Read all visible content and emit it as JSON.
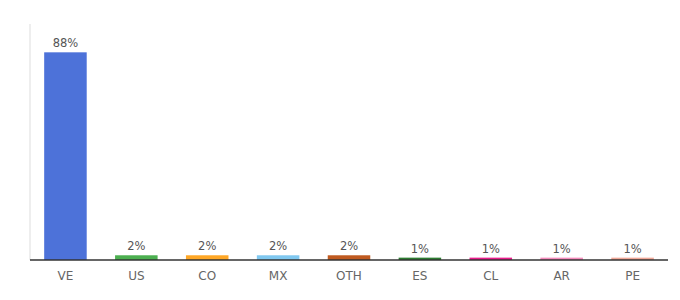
{
  "chart_data": {
    "type": "bar",
    "categories": [
      "VE",
      "US",
      "CO",
      "MX",
      "OTH",
      "ES",
      "CL",
      "AR",
      "PE"
    ],
    "values": [
      88,
      2,
      2,
      2,
      2,
      1,
      1,
      1,
      1
    ],
    "value_labels": [
      "88%",
      "2%",
      "2%",
      "2%",
      "2%",
      "1%",
      "1%",
      "1%",
      "1%"
    ],
    "colors": [
      "#4d72d9",
      "#4caf50",
      "#ffa726",
      "#80c8f0",
      "#c05a20",
      "#2e7d32",
      "#e91e8c",
      "#f48cbc",
      "#f0a898"
    ],
    "ylim": [
      0,
      100
    ],
    "grid": false,
    "data_labels": true,
    "tick_labels": "x"
  }
}
